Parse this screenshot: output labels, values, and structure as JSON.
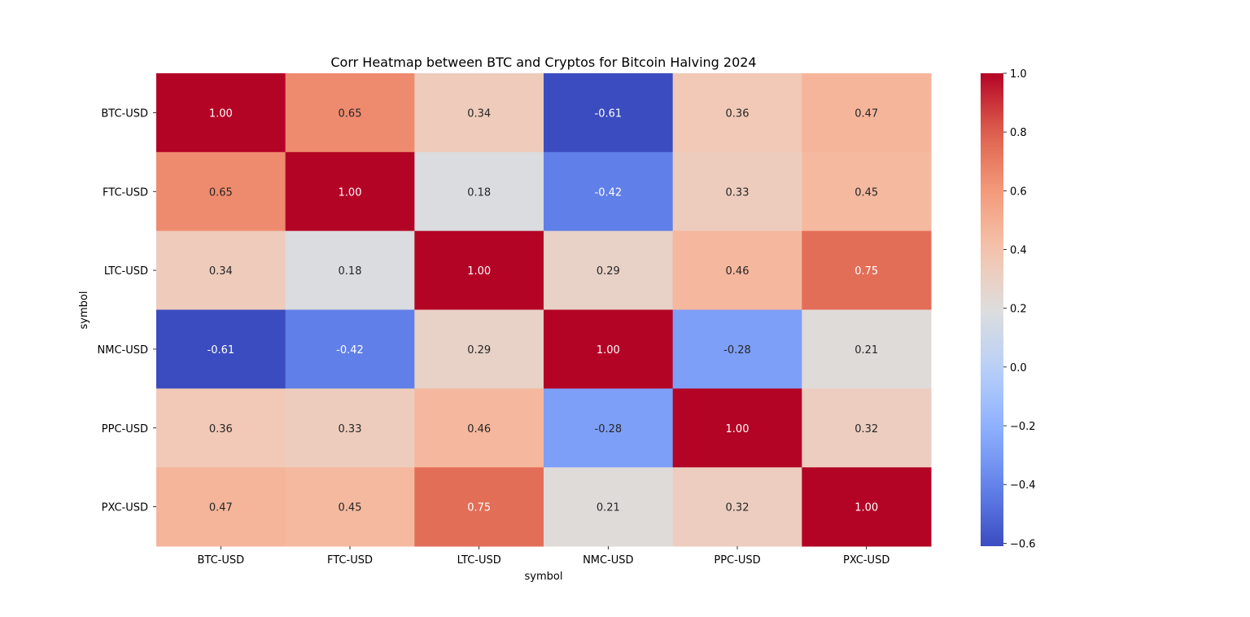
{
  "chart_data": {
    "type": "heatmap",
    "title": "Corr Heatmap between BTC and Cryptos for Bitcoin Halving 2024",
    "xlabel": "symbol",
    "ylabel": "symbol",
    "x_categories": [
      "BTC-USD",
      "FTC-USD",
      "LTC-USD",
      "NMC-USD",
      "PPC-USD",
      "PXC-USD"
    ],
    "y_categories": [
      "BTC-USD",
      "FTC-USD",
      "LTC-USD",
      "NMC-USD",
      "PPC-USD",
      "PXC-USD"
    ],
    "values": [
      [
        1.0,
        0.65,
        0.34,
        -0.61,
        0.36,
        0.47
      ],
      [
        0.65,
        1.0,
        0.18,
        -0.42,
        0.33,
        0.45
      ],
      [
        0.34,
        0.18,
        1.0,
        0.29,
        0.46,
        0.75
      ],
      [
        -0.61,
        -0.42,
        0.29,
        1.0,
        -0.28,
        0.21
      ],
      [
        0.36,
        0.33,
        0.46,
        -0.28,
        1.0,
        0.32
      ],
      [
        0.47,
        0.45,
        0.75,
        0.21,
        0.32,
        1.0
      ]
    ],
    "annotation_format": "0.00",
    "colormap": "coolwarm",
    "vmin": -0.61,
    "vmax": 1.0,
    "colorbar": {
      "ticks": [
        -0.6,
        -0.4,
        -0.2,
        0.0,
        0.2,
        0.4,
        0.6,
        0.8,
        1.0
      ],
      "tick_labels": [
        "−0.6",
        "−0.4",
        "−0.2",
        "0.0",
        "0.2",
        "0.4",
        "0.6",
        "0.8",
        "1.0"
      ]
    },
    "grid": false,
    "legend": "colorbar-right"
  }
}
